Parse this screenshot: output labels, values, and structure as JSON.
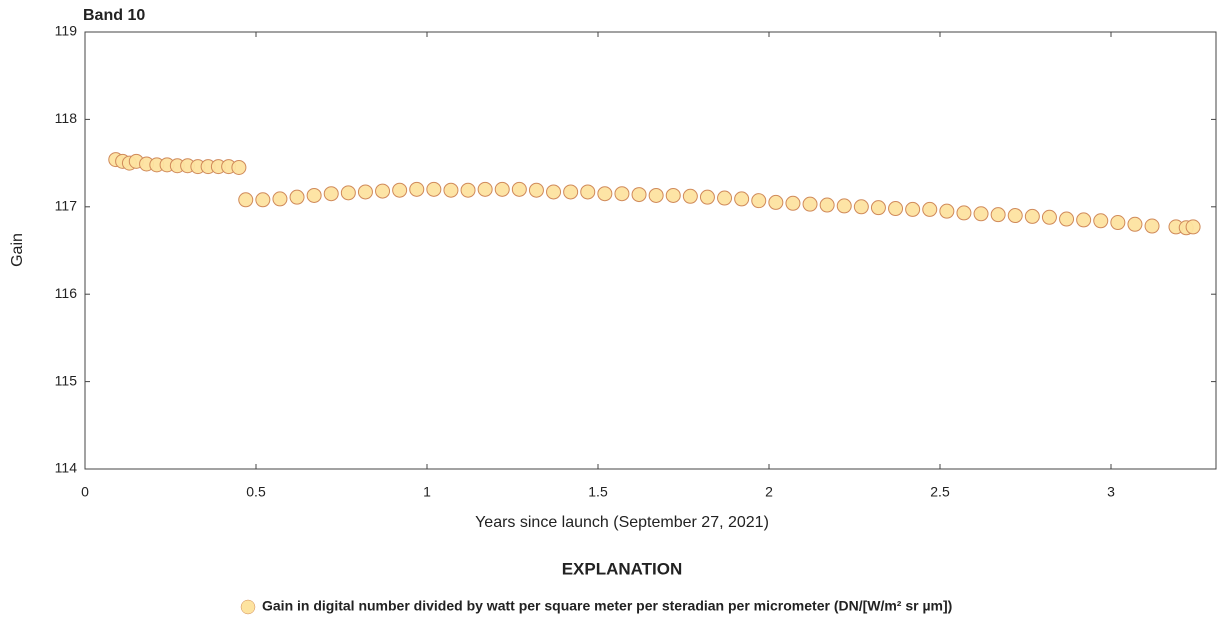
{
  "chart_data": {
    "type": "scatter",
    "title": "Band 10",
    "xlabel": "Years since launch (September 27, 2021)",
    "ylabel": "Gain",
    "xlim": [
      0,
      3.307
    ],
    "ylim": [
      114,
      119
    ],
    "xticks": [
      0,
      0.5,
      1,
      1.5,
      2,
      2.5,
      3
    ],
    "yticks": [
      114,
      115,
      116,
      117,
      118,
      119
    ],
    "grid": false,
    "legend_title": "EXPLANATION",
    "series": [
      {
        "name": "Gain in digital number divided by watt per square meter per steradian per micrometer (DN/[W/m² sr µm])",
        "color": "#fde3a0",
        "edge_color": "#d08a5a",
        "x": [
          0.09,
          0.11,
          0.13,
          0.15,
          0.18,
          0.21,
          0.24,
          0.27,
          0.3,
          0.33,
          0.36,
          0.39,
          0.42,
          0.45,
          0.47,
          0.52,
          0.57,
          0.62,
          0.67,
          0.72,
          0.77,
          0.82,
          0.87,
          0.92,
          0.97,
          1.02,
          1.07,
          1.12,
          1.17,
          1.22,
          1.27,
          1.32,
          1.37,
          1.42,
          1.47,
          1.52,
          1.57,
          1.62,
          1.67,
          1.72,
          1.77,
          1.82,
          1.87,
          1.92,
          1.97,
          2.02,
          2.07,
          2.12,
          2.17,
          2.22,
          2.27,
          2.32,
          2.37,
          2.42,
          2.47,
          2.52,
          2.57,
          2.62,
          2.67,
          2.72,
          2.77,
          2.82,
          2.87,
          2.92,
          2.97,
          3.02,
          3.07,
          3.12,
          3.19,
          3.22,
          3.24
        ],
        "values": [
          117.54,
          117.52,
          117.5,
          117.52,
          117.49,
          117.48,
          117.48,
          117.47,
          117.47,
          117.46,
          117.46,
          117.46,
          117.46,
          117.45,
          117.08,
          117.08,
          117.09,
          117.11,
          117.13,
          117.15,
          117.16,
          117.17,
          117.18,
          117.19,
          117.2,
          117.2,
          117.19,
          117.19,
          117.2,
          117.2,
          117.2,
          117.19,
          117.17,
          117.17,
          117.17,
          117.15,
          117.15,
          117.14,
          117.13,
          117.13,
          117.12,
          117.11,
          117.1,
          117.09,
          117.07,
          117.05,
          117.04,
          117.03,
          117.02,
          117.01,
          117.0,
          116.99,
          116.98,
          116.97,
          116.97,
          116.95,
          116.93,
          116.92,
          116.91,
          116.9,
          116.89,
          116.88,
          116.86,
          116.85,
          116.84,
          116.82,
          116.8,
          116.78,
          116.77,
          116.76,
          116.77
        ]
      }
    ]
  }
}
